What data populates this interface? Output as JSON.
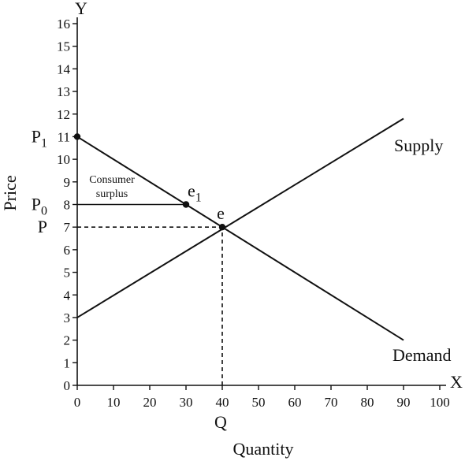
{
  "chart_data": {
    "type": "line",
    "title": "",
    "xlabel": "Quantity",
    "ylabel": "Price",
    "x_axis_letter": "X",
    "y_axis_letter": "Y",
    "xlim": [
      0,
      100
    ],
    "ylim": [
      0,
      16
    ],
    "x_ticks": [
      0,
      10,
      20,
      30,
      40,
      50,
      60,
      70,
      80,
      90,
      100
    ],
    "y_ticks": [
      0,
      1,
      2,
      3,
      4,
      5,
      6,
      7,
      8,
      9,
      10,
      11,
      12,
      13,
      14,
      15,
      16
    ],
    "grid": false,
    "series": [
      {
        "name": "Supply",
        "x": [
          0,
          90
        ],
        "y": [
          3,
          11.8
        ],
        "color": "#111111"
      },
      {
        "name": "Demand",
        "x": [
          0,
          90
        ],
        "y": [
          11,
          2
        ],
        "color": "#111111"
      }
    ],
    "points": [
      {
        "label": "P",
        "sub": "1",
        "x": 0,
        "y": 11
      },
      {
        "label": "e",
        "sub": "1",
        "x": 30,
        "y": 8
      },
      {
        "label": "e",
        "sub": "",
        "x": 40,
        "y": 7
      }
    ],
    "horizontal_segments": [
      {
        "label": "P",
        "sub": "0",
        "y": 8,
        "x_from": 0,
        "x_to": 30,
        "style": "solid"
      },
      {
        "label": "P",
        "sub": "",
        "y": 7,
        "x_from": 0,
        "x_to": 40,
        "style": "dashed"
      }
    ],
    "vertical_segments": [
      {
        "label": "Q",
        "x": 40,
        "y_from": 0,
        "y_to": 7,
        "style": "dashed"
      }
    ],
    "area_annotation": {
      "lines": [
        "Consumer",
        "surplus"
      ]
    },
    "colors": {
      "line": "#111111",
      "background": "#ffffff"
    }
  }
}
